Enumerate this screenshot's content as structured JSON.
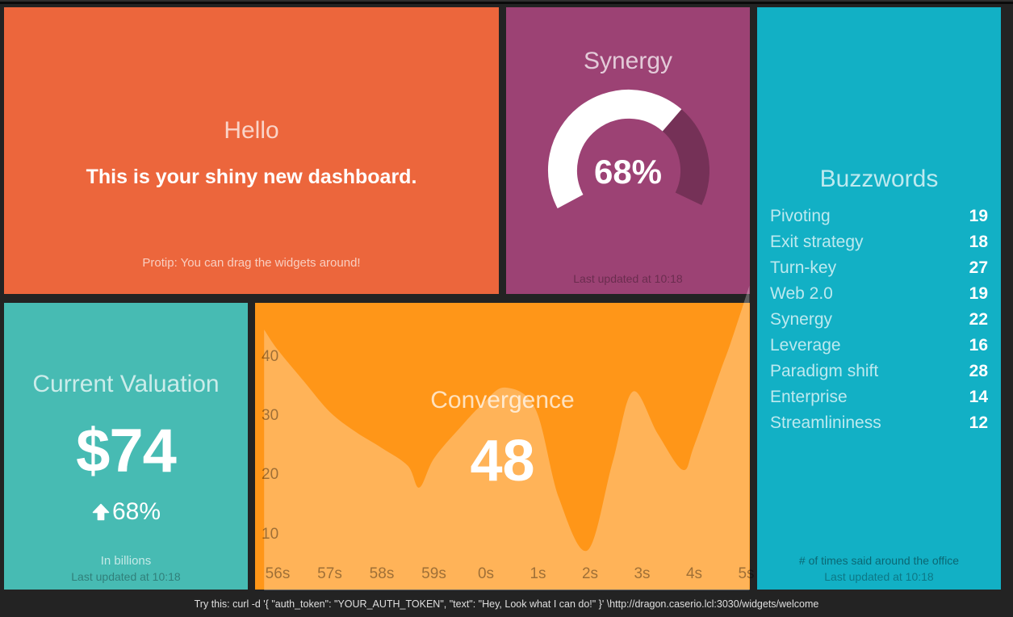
{
  "page": {
    "background": "#232323",
    "footer_tip": "Try this: curl -d '{ \"auth_token\": \"YOUR_AUTH_TOKEN\", \"text\": \"Hey, Look what I can do!\" }' \\http://dragon.caserio.lcl:3030/widgets/welcome"
  },
  "widgets": {
    "welcome": {
      "color": "#ec663c",
      "title": "Hello",
      "text": "This is your shiny new dashboard.",
      "more_info": "Protip: You can drag the widgets around!"
    },
    "synergy": {
      "color": "#9c4274",
      "title": "Synergy",
      "value_label": "68%",
      "updated_at": "Last updated at 10:18"
    },
    "buzzwords": {
      "color": "#12b0c5",
      "title": "Buzzwords",
      "items": [
        {
          "label": "Pivoting",
          "value": 19
        },
        {
          "label": "Exit strategy",
          "value": 18
        },
        {
          "label": "Turn-key",
          "value": 27
        },
        {
          "label": "Web 2.0",
          "value": 19
        },
        {
          "label": "Synergy",
          "value": 22
        },
        {
          "label": "Leverage",
          "value": 16
        },
        {
          "label": "Paradigm shift",
          "value": 28
        },
        {
          "label": "Enterprise",
          "value": 14
        },
        {
          "label": "Streamlininess",
          "value": 12
        }
      ],
      "more_info": "# of times said around the office",
      "updated_at": "Last updated at 10:18"
    },
    "valuation": {
      "color": "#47bbb3",
      "title": "Current Valuation",
      "value": "$74",
      "change": "68%",
      "change_direction": "up",
      "more_info": "In billions",
      "updated_at": "Last updated at 10:18"
    },
    "convergence": {
      "color": "#ff9618",
      "title": "Convergence",
      "value": "48"
    }
  },
  "chart_data": [
    {
      "type": "gauge",
      "title": "Synergy",
      "value": 68,
      "min": 0,
      "max": 100,
      "unit": "%",
      "filled_color": "#ffffff",
      "remaining_color": "rgba(0,0,0,0.25)",
      "start_deg": 208,
      "sweep_deg": 233.5
    },
    {
      "type": "area",
      "title": "Convergence",
      "current_value": 48,
      "x_tick_labels": [
        "56s",
        "57s",
        "58s",
        "59s",
        "0s",
        "1s",
        "2s",
        "3s",
        "4s",
        "5s"
      ],
      "y_ticks": [
        10,
        20,
        30,
        40
      ],
      "ylim": [
        0,
        49
      ],
      "grid": false,
      "legend": false,
      "fill_color": "rgba(255,255,255,0.28)",
      "points": [
        [
          -0.26,
          44.6
        ],
        [
          0,
          41.2
        ],
        [
          0.5,
          35.9
        ],
        [
          1,
          30.7
        ],
        [
          1.5,
          27.3
        ],
        [
          2,
          24.6
        ],
        [
          2.5,
          21.6
        ],
        [
          2.72,
          17.9
        ],
        [
          3,
          22.8
        ],
        [
          3.5,
          28
        ],
        [
          3.94,
          32.1
        ],
        [
          4.37,
          34.8
        ],
        [
          4.95,
          31.2
        ],
        [
          5.4,
          16.2
        ],
        [
          5.95,
          7.3
        ],
        [
          6.43,
          22.1
        ],
        [
          6.82,
          34.1
        ],
        [
          7.3,
          27
        ],
        [
          7.78,
          20.9
        ],
        [
          8,
          25
        ],
        [
          8.5,
          37.5
        ],
        [
          8.7,
          42.3
        ],
        [
          9.06,
          52
        ]
      ]
    }
  ]
}
